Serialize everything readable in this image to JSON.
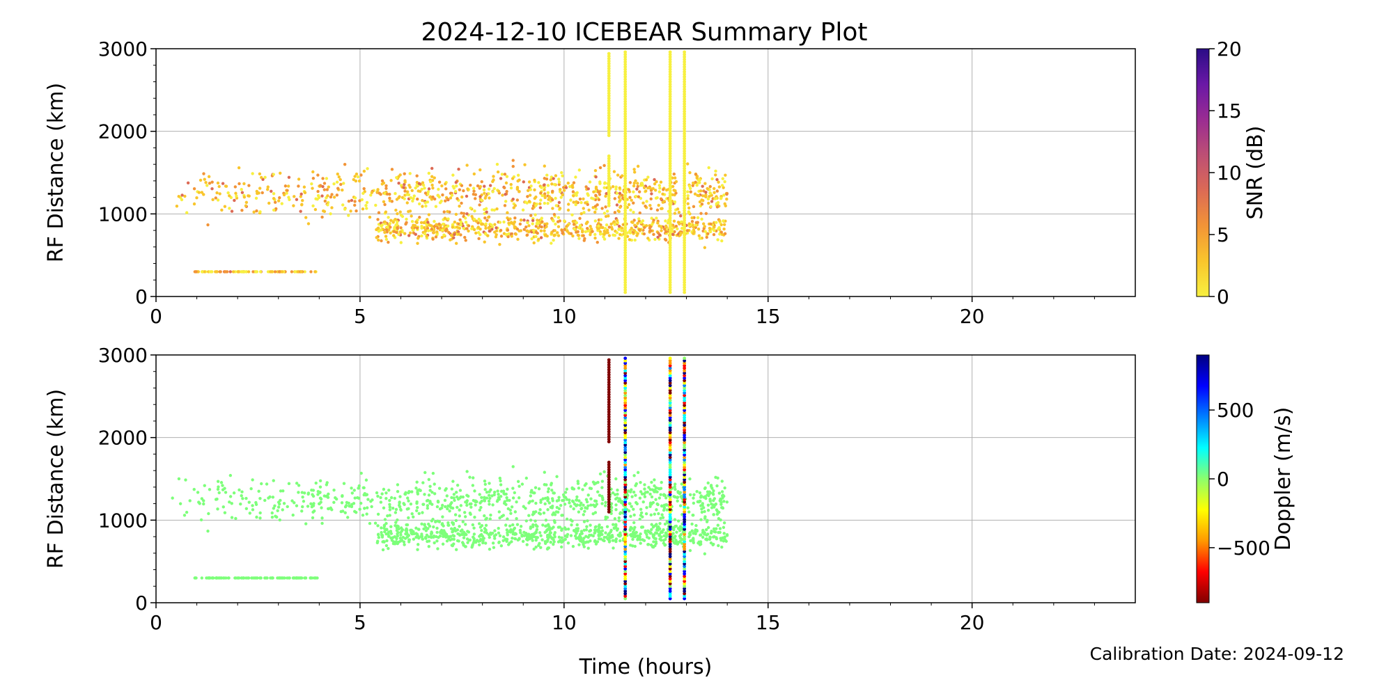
{
  "figure": {
    "title": "2024-12-10 ICEBEAR Summary Plot",
    "footer": "Calibration Date: 2024-09-12",
    "xlabel": "Time (hours)"
  },
  "colors": {
    "grid": "#b0b0b0",
    "axis": "#000000",
    "snr_colormap": [
      "#f7f040",
      "#f9c52c",
      "#f29437",
      "#dc6a55",
      "#bd4f74",
      "#9a2c92",
      "#6a18a6",
      "#2a0c86"
    ],
    "doppler_colormap": [
      "#800000",
      "#ff0000",
      "#ff9900",
      "#ffff00",
      "#8cff6c",
      "#00ffff",
      "#0080ff",
      "#0000ff",
      "#000080"
    ]
  },
  "chart_data": [
    {
      "type": "scatter",
      "name": "snr-panel",
      "ylabel": "RF Distance (km)",
      "xlim": [
        0,
        24
      ],
      "ylim": [
        0,
        3000
      ],
      "xticks": [
        0,
        5,
        10,
        15,
        20
      ],
      "yticks": [
        0,
        1000,
        2000,
        3000
      ],
      "grid": true,
      "colorbar": {
        "label": "SNR (dB)",
        "range": [
          0,
          20
        ],
        "ticks": [
          0,
          5,
          10,
          15,
          20
        ],
        "colormap": "plasma_r"
      },
      "data_extent_hours": [
        0.4,
        14.0
      ],
      "vertical_streaks_hours": [
        11.1,
        11.5,
        12.6,
        12.95
      ],
      "clusters": [
        {
          "x_range": [
            0.4,
            4.0
          ],
          "y_center": 300,
          "spread": 20
        },
        {
          "x_range": [
            0.4,
            14.0
          ],
          "y_center": 1300,
          "spread": 300
        },
        {
          "x_range": [
            5.5,
            14.0
          ],
          "y_center": 800,
          "spread": 150
        }
      ]
    },
    {
      "type": "scatter",
      "name": "doppler-panel",
      "ylabel": "RF Distance (km)",
      "xlim": [
        0,
        24
      ],
      "ylim": [
        0,
        3000
      ],
      "xticks": [
        0,
        5,
        10,
        15,
        20
      ],
      "yticks": [
        0,
        1000,
        2000,
        3000
      ],
      "grid": true,
      "colorbar": {
        "label": "Doppler (m/s)",
        "range": [
          -900,
          900
        ],
        "ticks": [
          -500,
          0,
          500
        ],
        "tick_labels": [
          "−500",
          "0",
          "500"
        ],
        "colormap": "jet_r"
      },
      "data_extent_hours": [
        0.4,
        14.0
      ],
      "vertical_streaks_hours": [
        11.1,
        11.5,
        12.6,
        12.95
      ]
    }
  ]
}
